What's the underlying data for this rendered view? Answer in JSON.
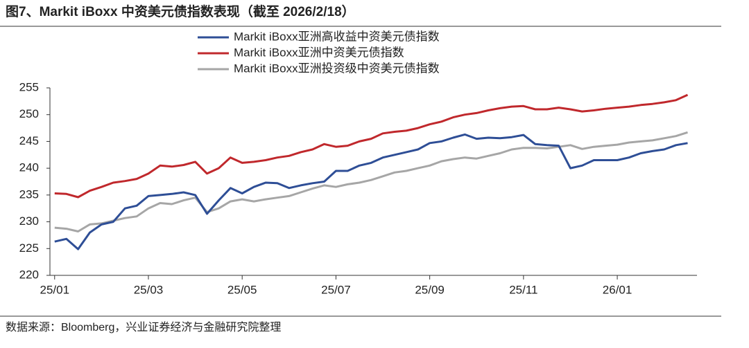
{
  "chart_data": {
    "type": "line",
    "title": "图7、Markit iBoxx 中资美元债指数表现（截至 2026/2/18）",
    "source": "数据来源：Bloomberg，兴业证券经济与金融研究院整理",
    "x": [
      0,
      0.25,
      0.5,
      0.75,
      1,
      1.25,
      1.5,
      1.75,
      2,
      2.25,
      2.5,
      2.75,
      3,
      3.25,
      3.5,
      3.75,
      4,
      4.25,
      4.5,
      4.75,
      5,
      5.25,
      5.5,
      5.75,
      6,
      6.25,
      6.5,
      6.75,
      7,
      7.25,
      7.5,
      7.75,
      8,
      8.25,
      8.5,
      8.75,
      9,
      9.25,
      9.5,
      9.75,
      10,
      10.25,
      10.5,
      10.75,
      11,
      11.25,
      11.5,
      11.75,
      12,
      12.25,
      12.5,
      12.75,
      13,
      13.25,
      13.5
    ],
    "series": [
      {
        "name": "Markit iBoxx亚洲高收益中资美元债指数",
        "color": "#2e4e96",
        "values": [
          226.3,
          226.8,
          224.9,
          228,
          229.5,
          230,
          232.5,
          233,
          234.8,
          235,
          235.2,
          235.5,
          235,
          231.5,
          234,
          236.3,
          235.3,
          236.5,
          237.3,
          237.2,
          236.3,
          236.8,
          237.2,
          237.5,
          239.5,
          239.5,
          240.5,
          241,
          242,
          242.5,
          243,
          243.5,
          244.7,
          245,
          245.7,
          246.3,
          245.5,
          245.7,
          245.6,
          245.8,
          246.2,
          244.5,
          244.3,
          244.2,
          240,
          240.5,
          241.5,
          241.5,
          241.5,
          242,
          242.8,
          243.2,
          243.5,
          244.3,
          244.7
        ]
      },
      {
        "name": "Markit iBoxx亚洲中资美元债指数",
        "color": "#c0282c",
        "values": [
          235.3,
          235.2,
          234.6,
          235.8,
          236.5,
          237.3,
          237.6,
          238,
          239,
          240.5,
          240.3,
          240.6,
          241.2,
          239,
          240,
          242,
          241,
          241.2,
          241.5,
          242,
          242.3,
          243,
          243.5,
          244.5,
          244,
          244.2,
          245,
          245.5,
          246.5,
          246.8,
          247,
          247.5,
          248.2,
          248.7,
          249.5,
          250,
          250.3,
          250.8,
          251.2,
          251.5,
          251.6,
          251,
          251,
          251.3,
          251,
          250.6,
          250.8,
          251.1,
          251.3,
          251.5,
          251.8,
          252,
          252.3,
          252.7,
          253.7
        ]
      },
      {
        "name": "Markit iBoxx亚洲投资级中资美元债指数",
        "color": "#a6a6a6",
        "values": [
          228.9,
          228.7,
          228.2,
          229.5,
          229.7,
          230.2,
          230.7,
          231,
          232.5,
          233.5,
          233.3,
          234,
          234.5,
          231.8,
          232.5,
          233.8,
          234.2,
          233.8,
          234.2,
          234.5,
          234.8,
          235.5,
          236.2,
          236.8,
          236.5,
          237,
          237.3,
          237.8,
          238.5,
          239.2,
          239.5,
          240,
          240.5,
          241.3,
          241.7,
          242,
          241.8,
          242.3,
          242.8,
          243.5,
          243.8,
          243.8,
          243.7,
          244,
          244.3,
          243.6,
          244,
          244.2,
          244.4,
          244.8,
          245,
          245.2,
          245.6,
          246,
          246.7
        ]
      }
    ],
    "xlim": [
      -0.1,
      13.7
    ],
    "xticks": [
      {
        "value": 0,
        "label": "25/01"
      },
      {
        "value": 2,
        "label": "25/03"
      },
      {
        "value": 4,
        "label": "25/05"
      },
      {
        "value": 6,
        "label": "25/07"
      },
      {
        "value": 8,
        "label": "25/09"
      },
      {
        "value": 10,
        "label": "25/11"
      },
      {
        "value": 12,
        "label": "26/01"
      }
    ],
    "ylim": [
      220,
      255
    ],
    "yticks": [
      220,
      225,
      230,
      235,
      240,
      245,
      250,
      255
    ],
    "grid": false
  }
}
